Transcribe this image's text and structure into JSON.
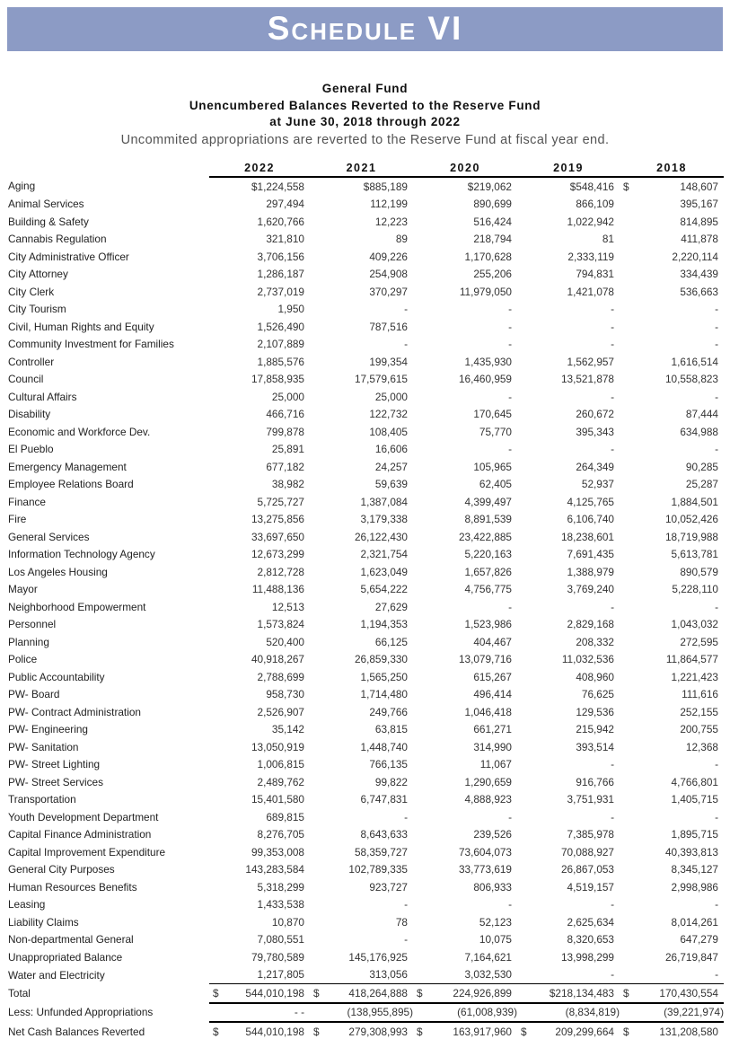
{
  "banner": {
    "title": "Schedule VI",
    "background_color": "#8C9BC5",
    "text_color": "#FFFFFF"
  },
  "header": {
    "line1": "General Fund",
    "line2": "Unencumbered Balances Reverted to the Reserve Fund",
    "line3": "at June 30, 2018 through 2022",
    "note": "Uncommited appropriations are reverted to the Reserve Fund at fiscal year end."
  },
  "table": {
    "year_columns": [
      "2022",
      "2021",
      "2020",
      "2019",
      "2018"
    ],
    "rows": [
      {
        "label": "Aging",
        "values": [
          "$1,224,558",
          "$885,189",
          "$219,062",
          "$548,416",
          "$|148,607"
        ]
      },
      {
        "label": "Animal Services",
        "values": [
          "297,494",
          "112,199",
          "890,699",
          "866,109",
          "395,167"
        ]
      },
      {
        "label": "Building & Safety",
        "values": [
          "1,620,766",
          "12,223",
          "516,424",
          "1,022,942",
          "814,895"
        ]
      },
      {
        "label": "Cannabis Regulation",
        "values": [
          "321,810",
          "89",
          "218,794",
          "81",
          "411,878"
        ]
      },
      {
        "label": "City Administrative Officer",
        "values": [
          "3,706,156",
          "409,226",
          "1,170,628",
          "2,333,119",
          "2,220,114"
        ]
      },
      {
        "label": "City Attorney",
        "values": [
          "1,286,187",
          "254,908",
          "255,206",
          "794,831",
          "334,439"
        ]
      },
      {
        "label": "City Clerk",
        "values": [
          "2,737,019",
          "370,297",
          "11,979,050",
          "1,421,078",
          "536,663"
        ]
      },
      {
        "label": "City Tourism",
        "values": [
          "1,950",
          "-",
          "-",
          "-",
          "-"
        ]
      },
      {
        "label": "Civil, Human Rights and Equity",
        "values": [
          "1,526,490",
          "787,516",
          "-",
          "-",
          "-"
        ]
      },
      {
        "label": "Community Investment for Families",
        "values": [
          "2,107,889",
          "-",
          "-",
          "-",
          "-"
        ]
      },
      {
        "label": "Controller",
        "values": [
          "1,885,576",
          "199,354",
          "1,435,930",
          "1,562,957",
          "1,616,514"
        ]
      },
      {
        "label": "Council",
        "values": [
          "17,858,935",
          "17,579,615",
          "16,460,959",
          "13,521,878",
          "10,558,823"
        ]
      },
      {
        "label": "Cultural Affairs",
        "values": [
          "25,000",
          "25,000",
          "-",
          "-",
          "-"
        ]
      },
      {
        "label": "Disability",
        "values": [
          "466,716",
          "122,732",
          "170,645",
          "260,672",
          "87,444"
        ]
      },
      {
        "label": "Economic and Workforce Dev.",
        "values": [
          "799,878",
          "108,405",
          "75,770",
          "395,343",
          "634,988"
        ]
      },
      {
        "label": "El Pueblo",
        "values": [
          "25,891",
          "16,606",
          "-",
          "-",
          "-"
        ]
      },
      {
        "label": "Emergency Management",
        "values": [
          "677,182",
          "24,257",
          "105,965",
          "264,349",
          "90,285"
        ]
      },
      {
        "label": "Employee Relations Board",
        "values": [
          "38,982",
          "59,639",
          "62,405",
          "52,937",
          "25,287"
        ]
      },
      {
        "label": "Finance",
        "values": [
          "5,725,727",
          "1,387,084",
          "4,399,497",
          "4,125,765",
          "1,884,501"
        ]
      },
      {
        "label": "Fire",
        "values": [
          "13,275,856",
          "3,179,338",
          "8,891,539",
          "6,106,740",
          "10,052,426"
        ]
      },
      {
        "label": "General Services",
        "values": [
          "33,697,650",
          "26,122,430",
          "23,422,885",
          "18,238,601",
          "18,719,988"
        ]
      },
      {
        "label": "Information Technology Agency",
        "values": [
          "12,673,299",
          "2,321,754",
          "5,220,163",
          "7,691,435",
          "5,613,781"
        ]
      },
      {
        "label": "Los Angeles Housing",
        "values": [
          "2,812,728",
          "1,623,049",
          "1,657,826",
          "1,388,979",
          "890,579"
        ]
      },
      {
        "label": "Mayor",
        "values": [
          "11,488,136",
          "5,654,222",
          "4,756,775",
          "3,769,240",
          "5,228,110"
        ]
      },
      {
        "label": "Neighborhood Empowerment",
        "values": [
          "12,513",
          "27,629",
          "-",
          "-",
          "-"
        ]
      },
      {
        "label": "Personnel",
        "values": [
          "1,573,824",
          "1,194,353",
          "1,523,986",
          "2,829,168",
          "1,043,032"
        ]
      },
      {
        "label": "Planning",
        "values": [
          "520,400",
          "66,125",
          "404,467",
          "208,332",
          "272,595"
        ]
      },
      {
        "label": "Police",
        "values": [
          "40,918,267",
          "26,859,330",
          "13,079,716",
          "11,032,536",
          "11,864,577"
        ]
      },
      {
        "label": "Public Accountability",
        "values": [
          "2,788,699",
          "1,565,250",
          "615,267",
          "408,960",
          "1,221,423"
        ]
      },
      {
        "label": "PW- Board",
        "values": [
          "958,730",
          "1,714,480",
          "496,414",
          "76,625",
          "111,616"
        ]
      },
      {
        "label": "PW- Contract Administration",
        "values": [
          "2,526,907",
          "249,766",
          "1,046,418",
          "129,536",
          "252,155"
        ]
      },
      {
        "label": "PW- Engineering",
        "values": [
          "35,142",
          "63,815",
          "661,271",
          "215,942",
          "200,755"
        ]
      },
      {
        "label": "PW- Sanitation",
        "values": [
          "13,050,919",
          "1,448,740",
          "314,990",
          "393,514",
          "12,368"
        ]
      },
      {
        "label": "PW- Street Lighting",
        "values": [
          "1,006,815",
          "766,135",
          "11,067",
          "-",
          "-"
        ]
      },
      {
        "label": "PW- Street Services",
        "values": [
          "2,489,762",
          "99,822",
          "1,290,659",
          "916,766",
          "4,766,801"
        ]
      },
      {
        "label": "Transportation",
        "values": [
          "15,401,580",
          "6,747,831",
          "4,888,923",
          "3,751,931",
          "1,405,715"
        ]
      },
      {
        "label": "Youth Development Department",
        "values": [
          "689,815",
          "-",
          "-",
          "-",
          "-"
        ]
      },
      {
        "label": "Capital Finance Administration",
        "values": [
          "8,276,705",
          "8,643,633",
          "239,526",
          "7,385,978",
          "1,895,715"
        ]
      },
      {
        "label": "Capital Improvement Expenditure",
        "values": [
          "99,353,008",
          "58,359,727",
          "73,604,073",
          "70,088,927",
          "40,393,813"
        ]
      },
      {
        "label": "General City Purposes",
        "values": [
          "143,283,584",
          "102,789,335",
          "33,773,619",
          "26,867,053",
          "8,345,127"
        ]
      },
      {
        "label": "Human Resources Benefits",
        "values": [
          "5,318,299",
          "923,727",
          "806,933",
          "4,519,157",
          "2,998,986"
        ]
      },
      {
        "label": "Leasing",
        "values": [
          "1,433,538",
          "-",
          "-",
          "-",
          "-"
        ]
      },
      {
        "label": "Liability Claims",
        "values": [
          "10,870",
          "78",
          "52,123",
          "2,625,634",
          "8,014,261"
        ]
      },
      {
        "label": "Non-departmental General",
        "values": [
          "7,080,551",
          "-",
          "10,075",
          "8,320,653",
          "647,279"
        ]
      },
      {
        "label": "Unappropriated Balance",
        "values": [
          "79,780,589",
          "145,176,925",
          "7,164,621",
          "13,998,299",
          "26,719,847"
        ]
      },
      {
        "label": "Water and Electricity",
        "values": [
          "1,217,805",
          "313,056",
          "3,032,530",
          "-",
          "-"
        ]
      }
    ],
    "total_row": {
      "label": "Total",
      "values": [
        "$|544,010,198",
        "$|418,264,888",
        "$|224,926,899",
        "$218,134,483",
        "$|170,430,554"
      ]
    },
    "less_row": {
      "label": "Less: Unfunded Appropriations",
      "values": [
        "- -",
        "(138,955,895)",
        "(61,008,939)",
        "(8,834,819)",
        "(39,221,974)"
      ]
    },
    "net_row": {
      "label": "Net Cash Balances Reverted",
      "values": [
        "$|544,010,198",
        "$|279,308,993",
        "$|163,917,960",
        "$|209,299,664",
        "$|131,208,580"
      ]
    }
  }
}
